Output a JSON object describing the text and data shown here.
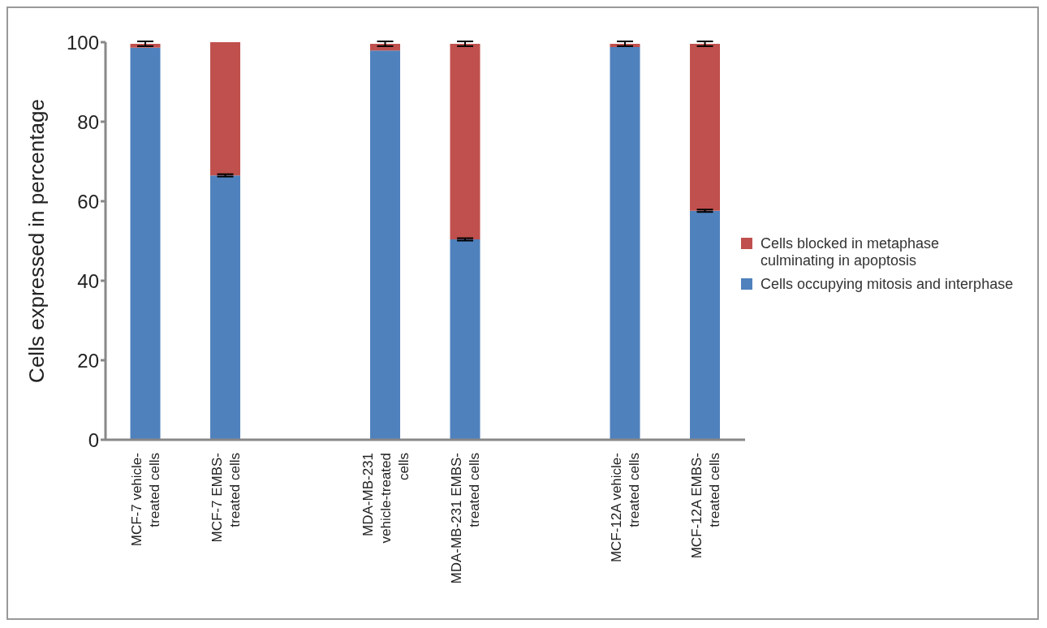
{
  "chart_data": {
    "type": "bar",
    "stacked": true,
    "ylabel": "Cells expressed in percentage",
    "categories": [
      "MCF-7 vehicle-treated cells",
      "MCF-7 EMBS-treated cells",
      null,
      "MDA-MB-231 vehicle-treated cells",
      "MDA-MB-231 EMBS-treated cells",
      null,
      "MCF-12A vehicle-treated cells",
      "MCF-12A EMBS-treated cells"
    ],
    "series": [
      {
        "name": "Cells occupying mitosis and interphase",
        "color": "#4f81bd",
        "values": [
          98.6,
          66.5,
          null,
          97.9,
          50.4,
          null,
          98.8,
          57.6
        ],
        "errors": [
          null,
          0.3,
          null,
          null,
          0.3,
          null,
          null,
          0.3
        ]
      },
      {
        "name": "Cells blocked in metaphase culminating in apoptosis",
        "color": "#c0504d",
        "values": [
          1.0,
          33.5,
          null,
          1.7,
          49.2,
          null,
          0.8,
          42.0
        ],
        "errors": [
          0.6,
          null,
          null,
          0.6,
          0.6,
          null,
          0.6,
          0.6
        ]
      }
    ],
    "ylim": [
      0,
      100
    ],
    "yticks": [
      0,
      20,
      40,
      60,
      80,
      100
    ],
    "legend": "right"
  }
}
